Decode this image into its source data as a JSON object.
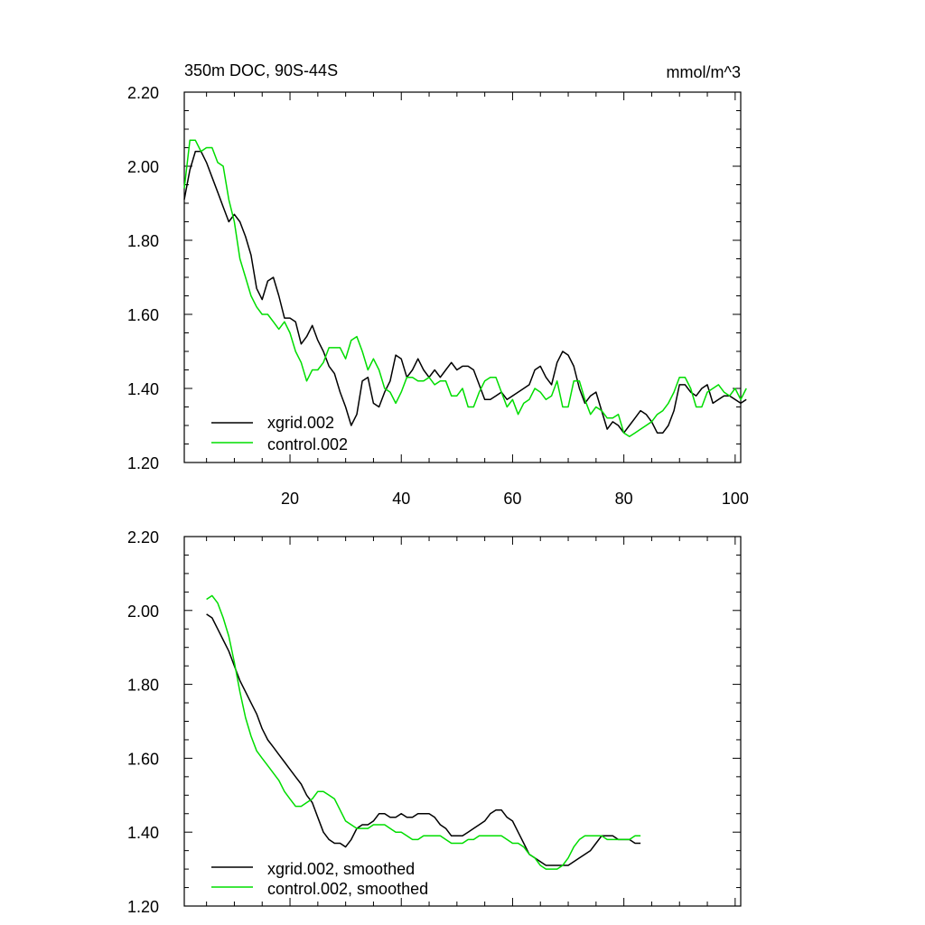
{
  "chart_data": [
    {
      "type": "line",
      "title": "350m DOC, 90S-44S",
      "units_label": "mmol/m^3",
      "xlabel": "",
      "ylabel": "",
      "xlim": [
        1,
        101
      ],
      "ylim": [
        1.2,
        2.2
      ],
      "y_ticks": [
        "1.20",
        "1.40",
        "1.60",
        "1.80",
        "2.00",
        "2.20"
      ],
      "x_ticks": [
        "20",
        "40",
        "60",
        "80",
        "100"
      ],
      "x_ticklabels_shown": true,
      "legend_position": "bottom-left",
      "colors": {
        "xgrid": "#000000",
        "control": "#00dd00"
      },
      "series": [
        {
          "name": "xgrid.002",
          "color": "#000000",
          "x_start": 1,
          "values": [
            1.91,
            1.99,
            2.04,
            2.04,
            2.01,
            1.97,
            1.93,
            1.89,
            1.85,
            1.87,
            1.85,
            1.81,
            1.76,
            1.67,
            1.64,
            1.69,
            1.7,
            1.65,
            1.59,
            1.59,
            1.58,
            1.52,
            1.54,
            1.57,
            1.53,
            1.5,
            1.46,
            1.44,
            1.39,
            1.35,
            1.3,
            1.33,
            1.42,
            1.43,
            1.36,
            1.35,
            1.39,
            1.42,
            1.49,
            1.48,
            1.43,
            1.45,
            1.48,
            1.45,
            1.43,
            1.45,
            1.43,
            1.45,
            1.47,
            1.45,
            1.46,
            1.46,
            1.45,
            1.41,
            1.37,
            1.37,
            1.38,
            1.39,
            1.37,
            1.38,
            1.39,
            1.4,
            1.41,
            1.45,
            1.46,
            1.43,
            1.41,
            1.47,
            1.5,
            1.49,
            1.46,
            1.4,
            1.36,
            1.38,
            1.39,
            1.34,
            1.29,
            1.31,
            1.3,
            1.28,
            1.3,
            1.32,
            1.34,
            1.33,
            1.31,
            1.28,
            1.28,
            1.3,
            1.34,
            1.41,
            1.41,
            1.39,
            1.38,
            1.4,
            1.41,
            1.36,
            1.37,
            1.38,
            1.38,
            1.37,
            1.36,
            1.37
          ]
        },
        {
          "name": "control.002",
          "color": "#00dd00",
          "x_start": 1,
          "values": [
            1.94,
            2.07,
            2.07,
            2.04,
            2.05,
            2.05,
            2.01,
            2.0,
            1.91,
            1.85,
            1.75,
            1.7,
            1.65,
            1.62,
            1.6,
            1.6,
            1.58,
            1.56,
            1.58,
            1.55,
            1.5,
            1.47,
            1.42,
            1.45,
            1.45,
            1.47,
            1.51,
            1.51,
            1.51,
            1.48,
            1.53,
            1.54,
            1.5,
            1.45,
            1.48,
            1.45,
            1.4,
            1.39,
            1.36,
            1.39,
            1.43,
            1.43,
            1.42,
            1.42,
            1.43,
            1.41,
            1.42,
            1.42,
            1.38,
            1.38,
            1.4,
            1.35,
            1.35,
            1.39,
            1.42,
            1.43,
            1.43,
            1.39,
            1.35,
            1.37,
            1.33,
            1.36,
            1.37,
            1.4,
            1.39,
            1.37,
            1.38,
            1.42,
            1.35,
            1.35,
            1.42,
            1.42,
            1.37,
            1.33,
            1.35,
            1.34,
            1.32,
            1.32,
            1.33,
            1.28,
            1.27,
            1.28,
            1.29,
            1.3,
            1.31,
            1.33,
            1.34,
            1.36,
            1.39,
            1.43,
            1.43,
            1.4,
            1.35,
            1.35,
            1.39,
            1.4,
            1.41,
            1.39,
            1.38,
            1.4,
            1.37,
            1.4
          ]
        }
      ]
    },
    {
      "type": "line",
      "title": "",
      "xlabel": "",
      "ylabel": "",
      "xlim": [
        1,
        101
      ],
      "ylim": [
        1.2,
        2.2
      ],
      "y_ticks": [
        "1.20",
        "1.40",
        "1.60",
        "1.80",
        "2.00",
        "2.20"
      ],
      "x_ticks": [
        "20",
        "40",
        "60",
        "80",
        "100"
      ],
      "x_ticklabels_shown": false,
      "legend_position": "bottom-left",
      "series": [
        {
          "name": "xgrid.002, smoothed",
          "color": "#000000",
          "x_start": 5,
          "values": [
            1.99,
            1.98,
            1.95,
            1.92,
            1.89,
            1.85,
            1.81,
            1.78,
            1.75,
            1.72,
            1.68,
            1.65,
            1.63,
            1.61,
            1.59,
            1.57,
            1.55,
            1.53,
            1.5,
            1.48,
            1.44,
            1.4,
            1.38,
            1.37,
            1.37,
            1.36,
            1.38,
            1.41,
            1.42,
            1.42,
            1.43,
            1.45,
            1.45,
            1.44,
            1.44,
            1.45,
            1.44,
            1.44,
            1.45,
            1.45,
            1.45,
            1.44,
            1.42,
            1.41,
            1.39,
            1.39,
            1.39,
            1.4,
            1.41,
            1.42,
            1.43,
            1.45,
            1.46,
            1.46,
            1.44,
            1.43,
            1.4,
            1.37,
            1.34,
            1.33,
            1.32,
            1.31,
            1.31,
            1.31,
            1.31,
            1.31,
            1.32,
            1.33,
            1.34,
            1.35,
            1.37,
            1.39,
            1.39,
            1.39,
            1.38,
            1.38,
            1.38,
            1.37,
            1.37
          ]
        },
        {
          "name": "control.002, smoothed",
          "color": "#00dd00",
          "x_start": 5,
          "values": [
            2.03,
            2.04,
            2.02,
            1.98,
            1.93,
            1.86,
            1.78,
            1.71,
            1.66,
            1.62,
            1.6,
            1.58,
            1.56,
            1.54,
            1.51,
            1.49,
            1.47,
            1.47,
            1.48,
            1.49,
            1.51,
            1.51,
            1.5,
            1.49,
            1.46,
            1.43,
            1.42,
            1.41,
            1.41,
            1.41,
            1.42,
            1.42,
            1.42,
            1.41,
            1.4,
            1.4,
            1.39,
            1.38,
            1.38,
            1.39,
            1.39,
            1.39,
            1.39,
            1.38,
            1.37,
            1.37,
            1.37,
            1.38,
            1.38,
            1.39,
            1.39,
            1.39,
            1.39,
            1.39,
            1.38,
            1.37,
            1.37,
            1.36,
            1.34,
            1.33,
            1.31,
            1.3,
            1.3,
            1.3,
            1.31,
            1.33,
            1.36,
            1.38,
            1.39,
            1.39,
            1.39,
            1.39,
            1.38,
            1.38,
            1.38,
            1.38,
            1.38,
            1.39,
            1.39
          ]
        }
      ]
    }
  ]
}
